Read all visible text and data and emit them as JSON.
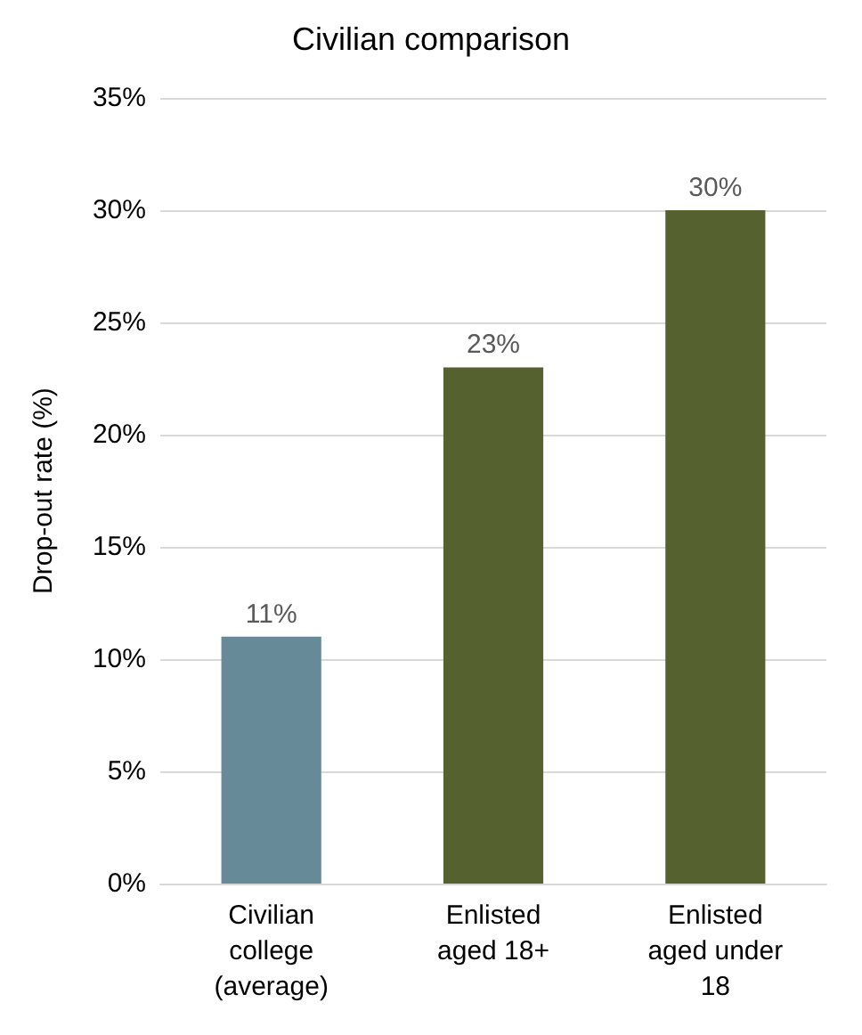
{
  "chart_data": {
    "type": "bar",
    "title": "Civilian comparison",
    "ylabel": "Drop-out rate (%)",
    "categories": [
      "Civilian\ncollege\n(average)",
      "Enlisted\naged 18+",
      "Enlisted\naged under\n18"
    ],
    "values": [
      11,
      23,
      30
    ],
    "colors": [
      "#678a98",
      "#55612f",
      "#55612f"
    ],
    "value_labels": [
      "11%",
      "23%",
      "30%"
    ],
    "ylim": [
      0,
      35
    ],
    "yticks": [
      {
        "value": 0,
        "label": "0%"
      },
      {
        "value": 5,
        "label": "5%"
      },
      {
        "value": 10,
        "label": "10%"
      },
      {
        "value": 15,
        "label": "15%"
      },
      {
        "value": 20,
        "label": "20%"
      },
      {
        "value": 25,
        "label": "25%"
      },
      {
        "value": 30,
        "label": "30%"
      },
      {
        "value": 35,
        "label": "35%"
      }
    ],
    "grid": "y"
  }
}
